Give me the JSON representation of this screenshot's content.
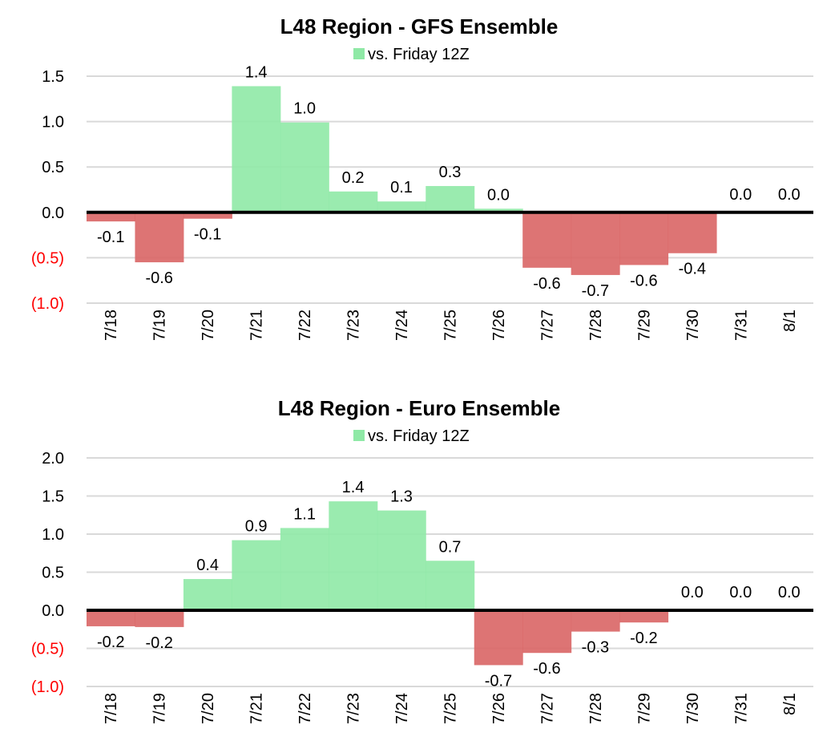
{
  "chart_data": [
    {
      "type": "bar",
      "title": "L48 Region - GFS Ensemble",
      "legend": {
        "label": "vs. Friday 12Z",
        "position": "top"
      },
      "categories": [
        "7/18",
        "7/19",
        "7/20",
        "7/21",
        "7/22",
        "7/23",
        "7/24",
        "7/25",
        "7/26",
        "7/27",
        "7/28",
        "7/29",
        "7/30",
        "7/31",
        "8/1"
      ],
      "values": [
        -0.1,
        -0.55,
        -0.07,
        1.39,
        0.99,
        0.23,
        0.12,
        0.29,
        0.04,
        -0.61,
        -0.69,
        -0.58,
        -0.45,
        0.0,
        0.0
      ],
      "data_labels": [
        "-0.1",
        "-0.6",
        "-0.1",
        "1.4",
        "1.0",
        "0.2",
        "0.1",
        "0.3",
        "0.0",
        "-0.6",
        "-0.7",
        "-0.6",
        "-0.4",
        "0.0",
        "0.0"
      ],
      "ylim": [
        -1.0,
        1.5
      ],
      "yticks": [
        "1.5",
        "1.0",
        "0.5",
        "0.0",
        "(0.5)",
        "(1.0)"
      ],
      "ytick_values": [
        1.5,
        1.0,
        0.5,
        0.0,
        -0.5,
        -1.0
      ],
      "grid": true,
      "xlabel": "",
      "ylabel": ""
    },
    {
      "type": "bar",
      "title": "L48 Region - Euro Ensemble",
      "legend": {
        "label": "vs. Friday 12Z",
        "position": "top"
      },
      "categories": [
        "7/18",
        "7/19",
        "7/20",
        "7/21",
        "7/22",
        "7/23",
        "7/24",
        "7/25",
        "7/26",
        "7/27",
        "7/28",
        "7/29",
        "7/30",
        "7/31",
        "8/1"
      ],
      "values": [
        -0.21,
        -0.22,
        0.41,
        0.92,
        1.08,
        1.43,
        1.31,
        0.65,
        -0.72,
        -0.56,
        -0.28,
        -0.16,
        0.0,
        0.0,
        0.0
      ],
      "data_labels": [
        "-0.2",
        "-0.2",
        "0.4",
        "0.9",
        "1.1",
        "1.4",
        "1.3",
        "0.7",
        "-0.7",
        "-0.6",
        "-0.3",
        "-0.2",
        "0.0",
        "0.0",
        "0.0"
      ],
      "ylim": [
        -1.0,
        2.0
      ],
      "yticks": [
        "2.0",
        "1.5",
        "1.0",
        "0.5",
        "0.0",
        "(0.5)",
        "(1.0)"
      ],
      "ytick_values": [
        2.0,
        1.5,
        1.0,
        0.5,
        0.0,
        -0.5,
        -1.0
      ],
      "grid": true,
      "xlabel": "",
      "ylabel": ""
    }
  ],
  "colors": {
    "positive": "#8fe9a6",
    "negative": "#d96565",
    "negative_tick": "#ff0000",
    "grid": "#d9d9d9",
    "zero_line": "#000000"
  }
}
